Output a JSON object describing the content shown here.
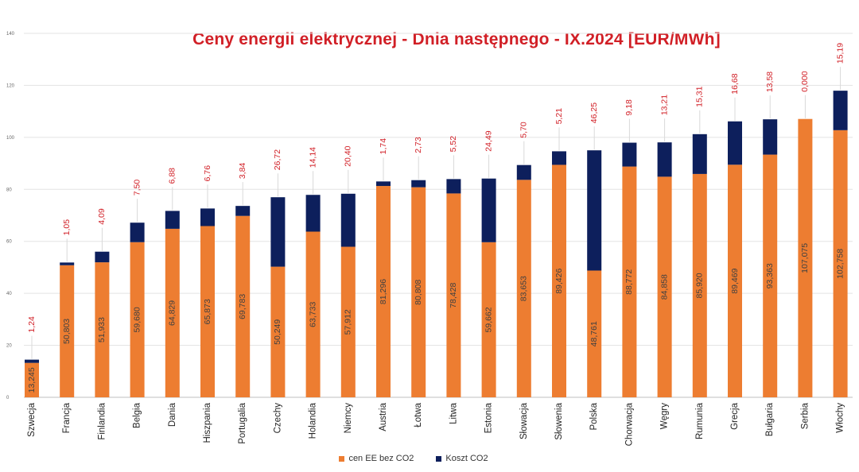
{
  "chart_data": {
    "type": "bar",
    "stacked": true,
    "title": "Ceny energii elektrycznej - Dnia następnego - IX.2024 [EUR/MWh]",
    "xlabel": "",
    "ylabel": "",
    "ylim": [
      0,
      140
    ],
    "yticks": [
      0,
      20,
      40,
      60,
      80,
      100,
      120,
      140
    ],
    "grid": true,
    "legend_position": "bottom",
    "categories": [
      "Szwecja",
      "Francja",
      "Finlandia",
      "Belgia",
      "Dania",
      "Hiszpania",
      "Portugalia",
      "Czechy",
      "Holandia",
      "Niemcy",
      "Austria",
      "Łotwa",
      "Litwa",
      "Estonia",
      "Słowacja",
      "Słowenia",
      "Polska",
      "Chorwacja",
      "Węgry",
      "Rumunia",
      "Grecja",
      "Bułgaria",
      "Serbia",
      "Włochy"
    ],
    "series": [
      {
        "name": "cen EE bez CO2",
        "color": "#ed7d31",
        "values": [
          13.245,
          50.803,
          51.933,
          59.68,
          64.829,
          65.873,
          69.783,
          50.249,
          63.733,
          57.912,
          81.296,
          80.808,
          78.428,
          59.662,
          83.653,
          89.426,
          48.761,
          88.772,
          84.858,
          85.92,
          89.469,
          93.363,
          107.075,
          102.758
        ],
        "labels": [
          "13,245",
          "50,803",
          "51,933",
          "59,680",
          "64,829",
          "65,873",
          "69,783",
          "50,249",
          "63,733",
          "57,912",
          "81,296",
          "80,808",
          "78,428",
          "59,662",
          "83,653",
          "89,426",
          "48,761",
          "88,772",
          "84,858",
          "85,920",
          "89,469",
          "93,363",
          "107,075",
          "102,758"
        ]
      },
      {
        "name": "Koszt CO2",
        "color": "#0d1f5c",
        "values": [
          1.24,
          1.05,
          4.09,
          7.5,
          6.88,
          6.76,
          3.84,
          26.72,
          14.14,
          20.4,
          1.74,
          2.73,
          5.52,
          24.49,
          5.7,
          5.21,
          46.25,
          9.18,
          13.21,
          15.31,
          16.68,
          13.58,
          0.0,
          15.19
        ],
        "labels": [
          "1,24",
          "1,05",
          "4,09",
          "7,50",
          "6,88",
          "6,76",
          "3,84",
          "26,72",
          "14,14",
          "20,40",
          "1,74",
          "2,73",
          "5,52",
          "24,49",
          "5,70",
          "5,21",
          "46,25",
          "9,18",
          "13,21",
          "15,31",
          "16,68",
          "13,58",
          "0,000",
          "15,19"
        ]
      }
    ]
  }
}
